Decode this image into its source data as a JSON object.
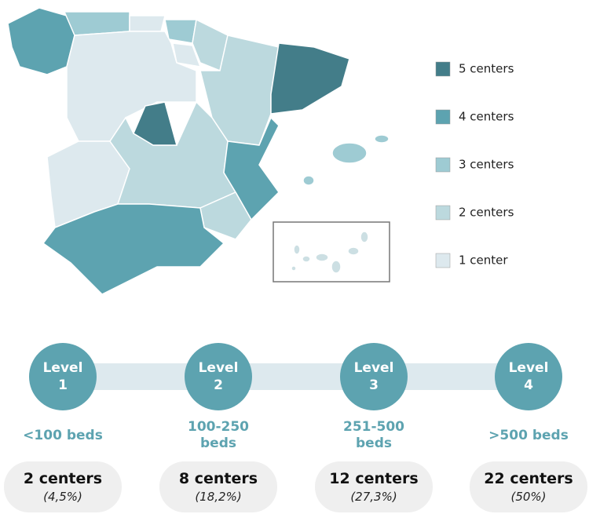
{
  "legend": [
    {
      "label": "5 centers",
      "color": "#437d89"
    },
    {
      "label": "4 centers",
      "color": "#5da3b0"
    },
    {
      "label": "3 centers",
      "color": "#9ecbd3"
    },
    {
      "label": "2 centers",
      "color": "#bcd9de"
    },
    {
      "label": "1 center",
      "color": "#dde9ee"
    }
  ],
  "levels": [
    {
      "label": "Level",
      "number": "1",
      "beds": "<100 beds",
      "centers": "2 centers",
      "percent": "(4,5%)"
    },
    {
      "label": "Level",
      "number": "2",
      "beds": "100-250 beds",
      "centers": "8 centers",
      "percent": "(18,2%)"
    },
    {
      "label": "Level",
      "number": "3",
      "beds": "251-500 beds",
      "centers": "12 centers",
      "percent": "(27,3%)"
    },
    {
      "label": "Level",
      "number": "4",
      "beds": ">500 beds",
      "centers": "22 centers",
      "percent": "(50%)"
    }
  ]
}
